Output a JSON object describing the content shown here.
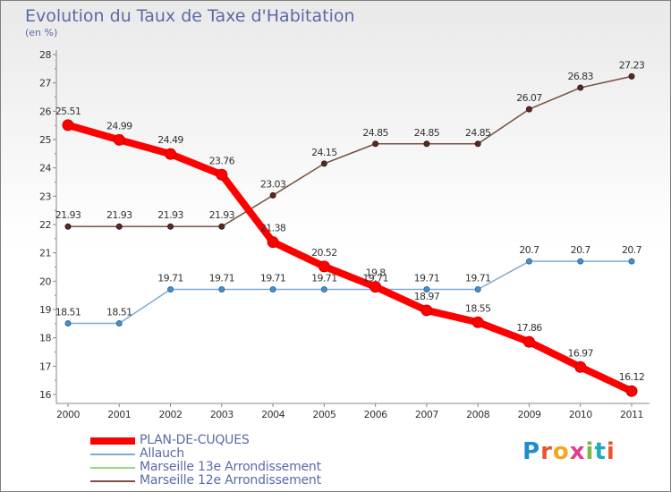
{
  "header": {
    "title": "Evolution du Taux de Taxe d'Habitation",
    "subtitle": "(en %)"
  },
  "brand": {
    "letters": [
      "P",
      "r",
      "o",
      "x",
      "i",
      "t",
      "i"
    ],
    "colors": [
      "#1f8bd1",
      "#e8542f",
      "#f2a81d",
      "#e23d8c",
      "#7ab648",
      "#1fa7c4",
      "#e8542f"
    ]
  },
  "chart_data": {
    "type": "line",
    "title": "Evolution du Taux de Taxe d'Habitation",
    "subtitle": "(en %)",
    "xlabel": "",
    "ylabel": "",
    "x": [
      "2000",
      "2001",
      "2002",
      "2003",
      "2004",
      "2005",
      "2006",
      "2007",
      "2008",
      "2009",
      "2010",
      "2011"
    ],
    "ylim": [
      16,
      28
    ],
    "yticks": [
      "16",
      "17",
      "18",
      "19",
      "20",
      "21",
      "22",
      "23",
      "24",
      "25",
      "26",
      "27",
      "28"
    ],
    "grid": false,
    "legend_position": "bottom-left",
    "series": [
      {
        "name": "PLAN-DE-CUQUES",
        "color": "#ff0000",
        "values": [
          25.51,
          24.99,
          24.49,
          23.76,
          21.38,
          20.52,
          19.8,
          18.97,
          18.55,
          17.86,
          16.97,
          16.12
        ]
      },
      {
        "name": "Allauch",
        "color": "#7fa9d4",
        "values": [
          18.51,
          18.51,
          19.71,
          19.71,
          19.71,
          19.71,
          19.71,
          19.71,
          19.71,
          20.7,
          20.7,
          20.7
        ]
      },
      {
        "name": "Marseille  13e  Arrondissement",
        "color": "#9bd27b",
        "values": [
          21.93,
          21.93,
          21.93,
          21.93,
          23.03,
          24.15,
          24.85,
          24.85,
          24.85,
          26.07,
          26.83,
          27.23
        ]
      },
      {
        "name": "Marseille  12e  Arrondissement",
        "color": "#7a5148",
        "values": [
          21.93,
          21.93,
          21.93,
          21.93,
          23.03,
          24.15,
          24.85,
          24.85,
          24.85,
          26.07,
          26.83,
          27.23
        ]
      }
    ],
    "labels": {
      "PLAN-DE-CUQUES": [
        "25.51",
        "24.99",
        "24.49",
        "23.76",
        "21.38",
        "20.52",
        "19.8",
        "18.97",
        "18.55",
        "17.86",
        "16.97",
        "16.12"
      ],
      "Allauch": [
        "18.51",
        "18.51",
        "19.71",
        "19.71",
        "19.71",
        "19.71",
        "19.71",
        "19.71",
        "19.71",
        "20.7",
        "20.7",
        "20.7"
      ],
      "Marseille  12e  Arrondissement": [
        "21.93",
        "21.93",
        "21.93",
        "21.93",
        "23.03",
        "24.15",
        "24.85",
        "24.85",
        "24.85",
        "26.07",
        "26.83",
        "27.23"
      ]
    }
  }
}
